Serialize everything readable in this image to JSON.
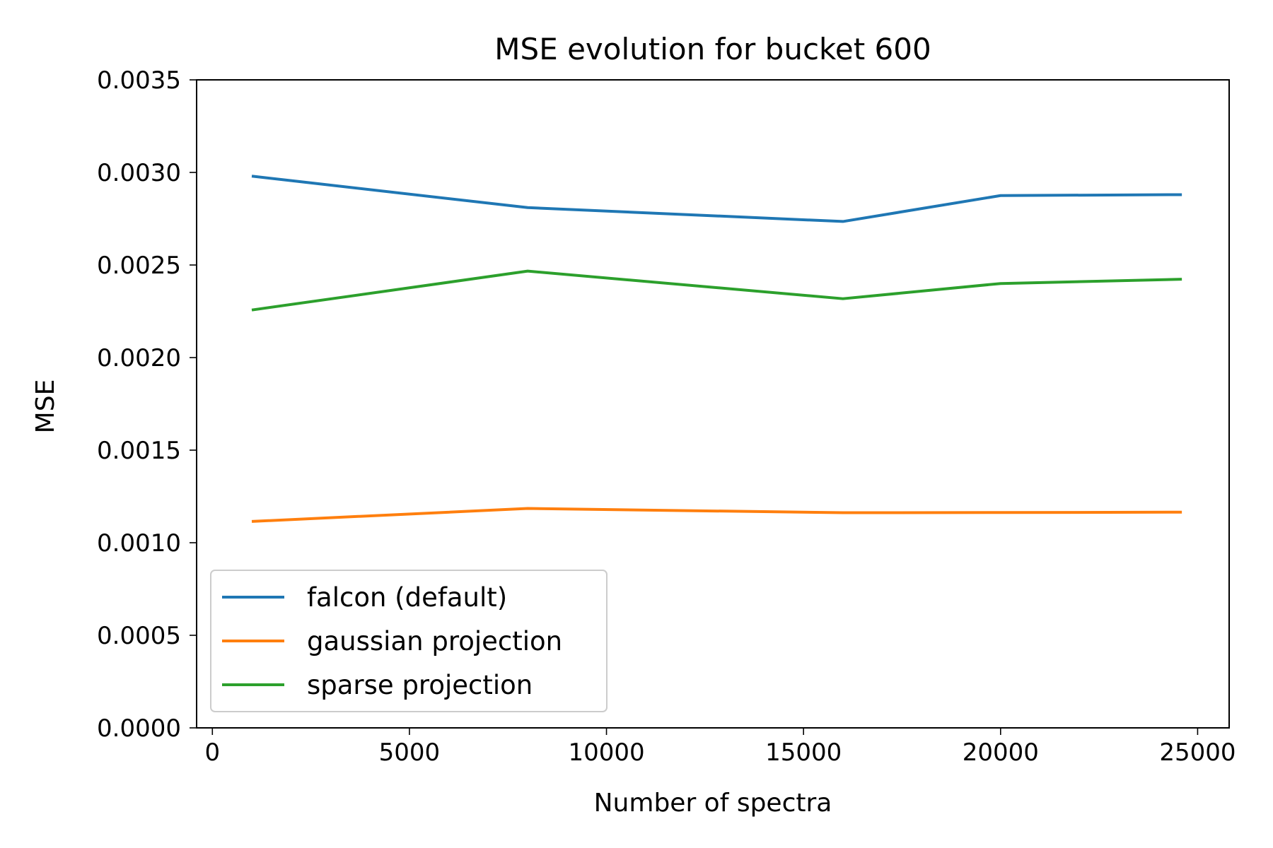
{
  "chart_data": {
    "type": "line",
    "title": "MSE evolution for bucket 600",
    "xlabel": "Number of spectra",
    "ylabel": "MSE",
    "x": [
      1000,
      8000,
      16000,
      20000,
      24600
    ],
    "xlim": [
      -400,
      25800
    ],
    "ylim": [
      0,
      0.0035
    ],
    "xticks": [
      0,
      5000,
      10000,
      15000,
      20000,
      25000
    ],
    "xtick_labels": [
      "0",
      "5000",
      "10000",
      "15000",
      "20000",
      "25000"
    ],
    "yticks": [
      0,
      0.0005,
      0.001,
      0.0015,
      0.002,
      0.0025,
      0.003,
      0.0035
    ],
    "ytick_labels": [
      "0.0000",
      "0.0005",
      "0.0010",
      "0.0015",
      "0.0020",
      "0.0025",
      "0.0030",
      "0.0035"
    ],
    "grid": false,
    "legend_position": "lower-left",
    "series": [
      {
        "name": "falcon (default)",
        "color": "#1f77b4",
        "values": [
          0.00298,
          0.00281,
          0.002735,
          0.002875,
          0.00288
        ]
      },
      {
        "name": "gaussian projection",
        "color": "#ff7f0e",
        "values": [
          0.001115,
          0.001185,
          0.001162,
          0.001163,
          0.001165
        ]
      },
      {
        "name": "sparse projection",
        "color": "#2ca02c",
        "values": [
          0.002257,
          0.002467,
          0.002318,
          0.0024,
          0.002423
        ]
      }
    ]
  }
}
